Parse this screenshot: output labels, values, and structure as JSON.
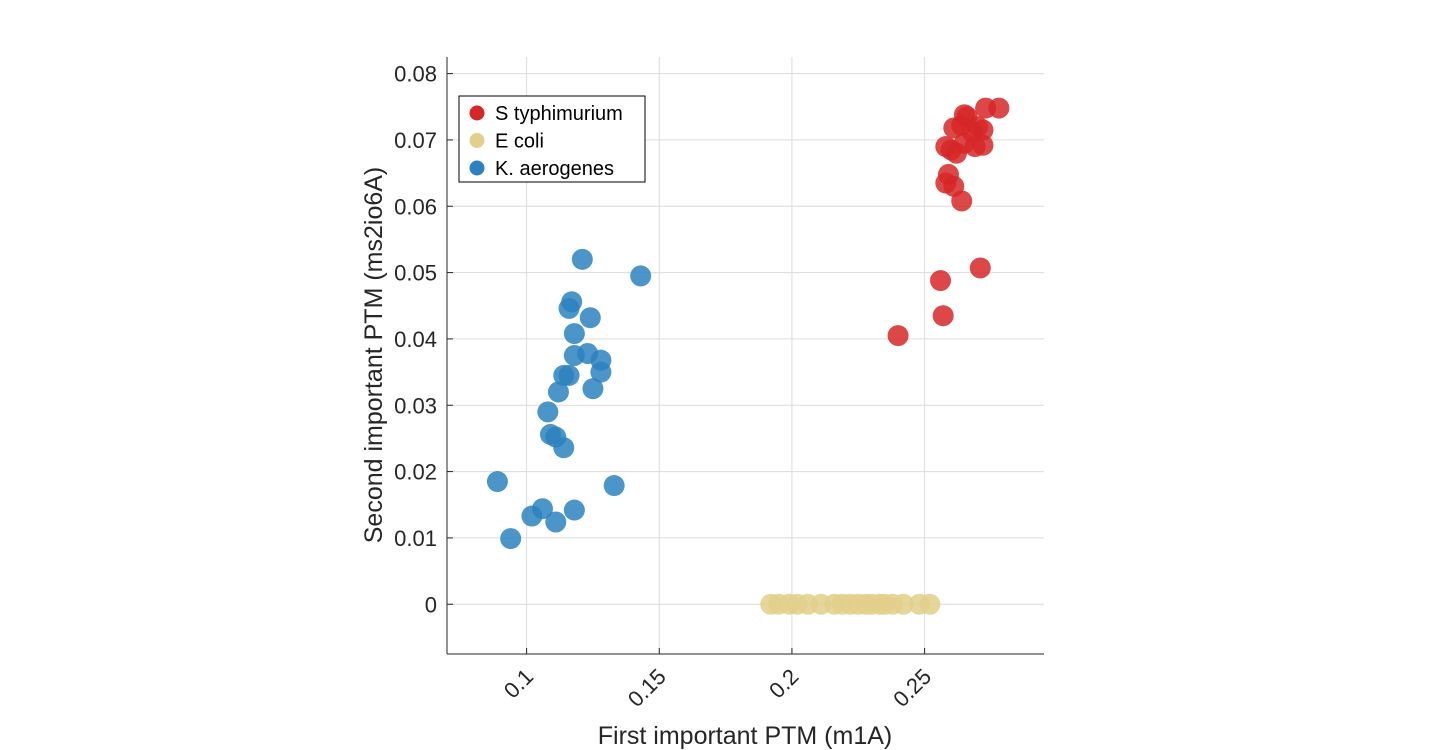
{
  "chart_data": {
    "type": "scatter",
    "title": "",
    "xlabel": "First important PTM (m1A)",
    "ylabel": "Second important PTM (ms2io6A)",
    "xlim": [
      0.07,
      0.295
    ],
    "ylim": [
      -0.0075,
      0.0825
    ],
    "xticks": [
      0.1,
      0.15,
      0.2,
      0.25
    ],
    "xtick_labels": [
      "0.1",
      "0.15",
      "0.2",
      "0.25"
    ],
    "yticks": [
      0,
      0.01,
      0.02,
      0.03,
      0.04,
      0.05,
      0.06,
      0.07,
      0.08
    ],
    "ytick_labels": [
      "0",
      "0.01",
      "0.02",
      "0.03",
      "0.04",
      "0.05",
      "0.06",
      "0.07",
      "0.08"
    ],
    "grid": true,
    "legend_position": "top-left",
    "series": [
      {
        "name": "S typhimurium",
        "color": "#d62728",
        "points": [
          [
            0.24,
            0.0405
          ],
          [
            0.257,
            0.0435
          ],
          [
            0.256,
            0.0488
          ],
          [
            0.271,
            0.0507
          ],
          [
            0.264,
            0.0608
          ],
          [
            0.261,
            0.063
          ],
          [
            0.258,
            0.0635
          ],
          [
            0.259,
            0.0648
          ],
          [
            0.258,
            0.069
          ],
          [
            0.26,
            0.0685
          ],
          [
            0.262,
            0.068
          ],
          [
            0.265,
            0.0695
          ],
          [
            0.269,
            0.069
          ],
          [
            0.272,
            0.0692
          ],
          [
            0.261,
            0.0718
          ],
          [
            0.264,
            0.0722
          ],
          [
            0.266,
            0.0735
          ],
          [
            0.265,
            0.0738
          ],
          [
            0.27,
            0.072
          ],
          [
            0.272,
            0.0715
          ],
          [
            0.268,
            0.0712
          ],
          [
            0.273,
            0.0748
          ],
          [
            0.278,
            0.0748
          ]
        ]
      },
      {
        "name": "E coli",
        "color": "#e2cf8b",
        "points": [
          [
            0.192,
            0
          ],
          [
            0.195,
            0
          ],
          [
            0.199,
            0
          ],
          [
            0.202,
            0
          ],
          [
            0.206,
            0
          ],
          [
            0.211,
            0
          ],
          [
            0.216,
            0
          ],
          [
            0.219,
            0
          ],
          [
            0.222,
            0
          ],
          [
            0.225,
            0
          ],
          [
            0.228,
            0
          ],
          [
            0.23,
            0
          ],
          [
            0.233,
            0
          ],
          [
            0.235,
            0
          ],
          [
            0.238,
            0
          ],
          [
            0.242,
            0
          ],
          [
            0.248,
            0
          ],
          [
            0.252,
            0
          ]
        ]
      },
      {
        "name": "K. aerogenes",
        "color": "#2c82be",
        "points": [
          [
            0.094,
            0.0099
          ],
          [
            0.089,
            0.0185
          ],
          [
            0.102,
            0.0133
          ],
          [
            0.106,
            0.0144
          ],
          [
            0.111,
            0.0124
          ],
          [
            0.118,
            0.0142
          ],
          [
            0.133,
            0.0179
          ],
          [
            0.114,
            0.0236
          ],
          [
            0.109,
            0.0256
          ],
          [
            0.111,
            0.0252
          ],
          [
            0.108,
            0.029
          ],
          [
            0.112,
            0.032
          ],
          [
            0.114,
            0.0345
          ],
          [
            0.116,
            0.0345
          ],
          [
            0.125,
            0.0325
          ],
          [
            0.128,
            0.035
          ],
          [
            0.128,
            0.0368
          ],
          [
            0.118,
            0.0375
          ],
          [
            0.123,
            0.0378
          ],
          [
            0.118,
            0.0408
          ],
          [
            0.116,
            0.0446
          ],
          [
            0.117,
            0.0456
          ],
          [
            0.124,
            0.0432
          ],
          [
            0.121,
            0.052
          ],
          [
            0.143,
            0.0495
          ]
        ]
      }
    ]
  }
}
